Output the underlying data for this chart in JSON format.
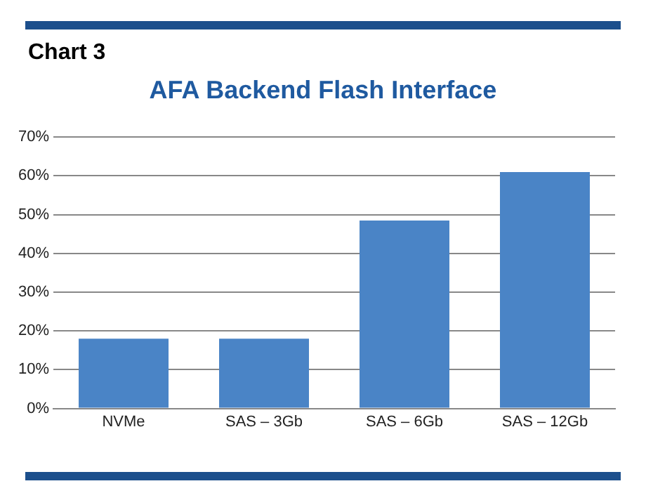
{
  "chart_data": {
    "type": "bar",
    "title": "AFA Backend Flash Interface",
    "annotations": [
      "Chart 3"
    ],
    "categories": [
      "NVMe",
      "SAS – 3Gb",
      "SAS – 6Gb",
      "SAS – 12Gb"
    ],
    "values": [
      18,
      18,
      48.5,
      61
    ],
    "color": "#4a84c6",
    "ylim": [
      0,
      70
    ],
    "yticks": [
      {
        "value": 0,
        "label": "0%"
      },
      {
        "value": 10,
        "label": "10%"
      },
      {
        "value": 20,
        "label": "20%"
      },
      {
        "value": 30,
        "label": "30%"
      },
      {
        "value": 40,
        "label": "40%"
      },
      {
        "value": 50,
        "label": "50%"
      },
      {
        "value": 60,
        "label": "60%"
      },
      {
        "value": 70,
        "label": "70%"
      }
    ],
    "grid": "y",
    "legend": false
  }
}
